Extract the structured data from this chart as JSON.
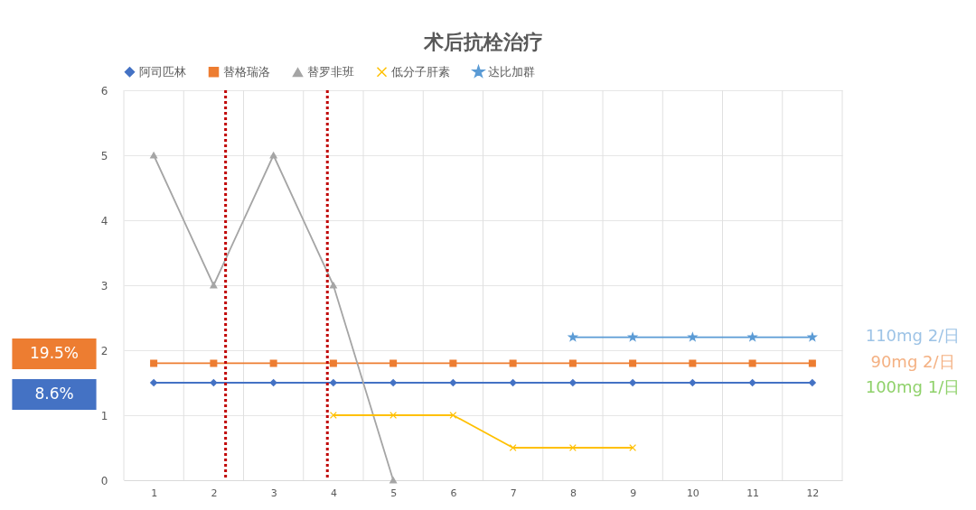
{
  "chart_data": {
    "type": "line",
    "title": "术后抗栓治疗",
    "x": [
      1,
      2,
      3,
      4,
      5,
      6,
      7,
      8,
      9,
      10,
      11,
      12
    ],
    "xlim": [
      0.5,
      12.5
    ],
    "xticks": [
      1,
      2,
      3,
      4,
      5,
      6,
      7,
      8,
      9,
      10,
      11,
      12
    ],
    "ylim": [
      0,
      6
    ],
    "yticks": [
      0,
      1,
      2,
      3,
      4,
      5,
      6
    ],
    "grid": true,
    "legend": "top",
    "line_style": "solid",
    "series": [
      {
        "name": "阿司匹林",
        "color": "#4472c4",
        "marker": "diamond",
        "values": [
          1.5,
          1.5,
          1.5,
          1.5,
          1.5,
          1.5,
          1.5,
          1.5,
          1.5,
          1.5,
          1.5,
          1.5
        ]
      },
      {
        "name": "替格瑞洛",
        "color": "#ed7d31",
        "marker": "square",
        "values": [
          1.8,
          1.8,
          1.8,
          1.8,
          1.8,
          1.8,
          1.8,
          1.8,
          1.8,
          1.8,
          1.8,
          1.8
        ]
      },
      {
        "name": "替罗非班",
        "color": "#a5a5a5",
        "marker": "triangle",
        "values": [
          5,
          3,
          5,
          3,
          0,
          null,
          null,
          null,
          null,
          null,
          null,
          null
        ]
      },
      {
        "name": "低分子肝素",
        "color": "#ffc000",
        "marker": "cross",
        "values": [
          null,
          null,
          null,
          1,
          1,
          1,
          0.5,
          0.5,
          0.5,
          null,
          null,
          null
        ]
      },
      {
        "name": "达比加群",
        "color": "#5b9bd5",
        "marker": "star",
        "values": [
          null,
          null,
          null,
          null,
          null,
          null,
          null,
          2.2,
          2.2,
          2.2,
          2.2,
          2.2
        ]
      }
    ],
    "ref_lines": [
      {
        "axis": "x",
        "value": 2.2,
        "color": "#c00000",
        "line_style": "dotted"
      },
      {
        "axis": "x",
        "value": 3.9,
        "color": "#c00000",
        "line_style": "dotted"
      }
    ],
    "annotations": [
      "19.5%",
      "8.6%",
      "110mg 2/日",
      "90mg 2/日",
      "100mg 1/日"
    ]
  }
}
